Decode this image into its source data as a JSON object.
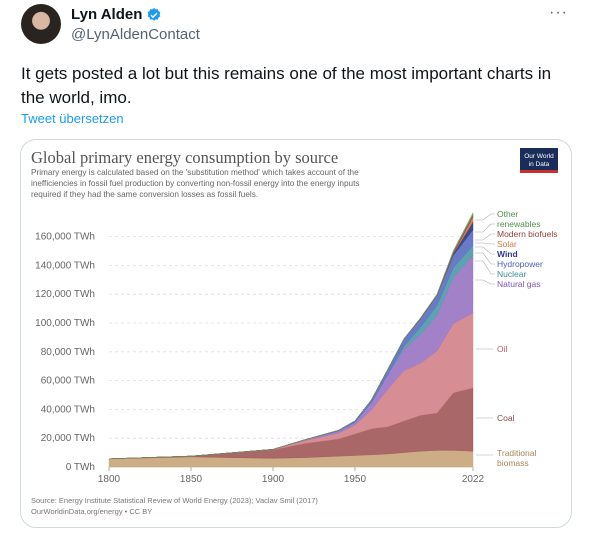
{
  "author": {
    "name": "Lyn Alden",
    "handle": "@LynAldenContact"
  },
  "menu": {
    "more_label": "···"
  },
  "tweet": {
    "text": "It gets posted a lot but this remains one of the most important charts in the world, imo.",
    "translate_label": "Tweet übersetzen"
  },
  "chart_data": {
    "type": "area",
    "title": "Global primary energy consumption by source",
    "subtitle": "Primary energy is calculated based on the 'substitution method' which takes account of the inefficiencies in fossil fuel production by converting non-fossil energy into the energy inputs required if they had the same conversion losses as fossil fuels.",
    "logo_text": "Our World in Data",
    "source": "Source: Energy Institute Statistical Review of World Energy (2023); Vaclav Smil (2017)",
    "source_link": "OurWorldinData.org/energy • CC BY",
    "ylim": [
      0,
      175000
    ],
    "y_ticks": [
      "0 TWh",
      "20,000 TWh",
      "40,000 TWh",
      "60,000 TWh",
      "80,000 TWh",
      "100,000 TWh",
      "120,000 TWh",
      "140,000 TWh",
      "160,000 TWh"
    ],
    "y_tick_values": [
      0,
      20000,
      40000,
      60000,
      80000,
      100000,
      120000,
      140000,
      160000
    ],
    "x_ticks": [
      "1800",
      "1850",
      "1900",
      "1950",
      "2022"
    ],
    "x_tick_values": [
      1800,
      1850,
      1900,
      1950,
      2022
    ],
    "x": [
      1800,
      1850,
      1900,
      1920,
      1940,
      1950,
      1960,
      1970,
      1980,
      1990,
      2000,
      2010,
      2022
    ],
    "series": [
      {
        "name": "Traditional biomass",
        "color": "#c8a67c",
        "values": [
          5600,
          7000,
          6000,
          6500,
          7500,
          8000,
          8500,
          9000,
          10000,
          11000,
          11500,
          11500,
          11000
        ]
      },
      {
        "name": "Coal",
        "color": "#a25a5a",
        "values": [
          100,
          600,
          6000,
          10000,
          12000,
          15000,
          18000,
          19000,
          22000,
          25000,
          26000,
          40000,
          44000
        ]
      },
      {
        "name": "Oil",
        "color": "#d4838b",
        "values": [
          0,
          0,
          200,
          2000,
          4000,
          6000,
          13000,
          26000,
          35000,
          36000,
          43000,
          48000,
          52000
        ]
      },
      {
        "name": "Natural gas",
        "color": "#9b76c4",
        "values": [
          0,
          0,
          100,
          500,
          1500,
          2000,
          5000,
          10000,
          15000,
          20000,
          25000,
          32000,
          40000
        ]
      },
      {
        "name": "Nuclear",
        "color": "#4f9aa8",
        "values": [
          0,
          0,
          0,
          0,
          0,
          0,
          0,
          200,
          2000,
          5000,
          6500,
          7000,
          6800
        ]
      },
      {
        "name": "Hydropower",
        "color": "#5c6fc2",
        "values": [
          0,
          0,
          0,
          200,
          500,
          1000,
          2000,
          3500,
          5000,
          6000,
          7000,
          8500,
          11000
        ]
      },
      {
        "name": "Wind",
        "color": "#2c3a84",
        "values": [
          0,
          0,
          0,
          0,
          0,
          0,
          0,
          0,
          0,
          0,
          100,
          900,
          5500
        ]
      },
      {
        "name": "Solar",
        "color": "#d9763d",
        "values": [
          0,
          0,
          0,
          0,
          0,
          0,
          0,
          0,
          0,
          0,
          0,
          100,
          3500
        ]
      },
      {
        "name": "Modern biofuels",
        "color": "#8f3d3d",
        "values": [
          0,
          0,
          0,
          0,
          0,
          0,
          0,
          0,
          100,
          300,
          300,
          1200,
          1200
        ]
      },
      {
        "name": "Other renewables",
        "color": "#5fa35f",
        "values": [
          0,
          0,
          0,
          0,
          0,
          0,
          0,
          100,
          200,
          400,
          600,
          1000,
          1500
        ]
      }
    ],
    "legend_labels": [
      {
        "text": "Other",
        "color": "#4d8f4d"
      },
      {
        "text": "renewables",
        "color": "#4d8f4d"
      },
      {
        "text": "Modern biofuels",
        "color": "#8f3d3d"
      },
      {
        "text": "Solar",
        "color": "#d9763d"
      },
      {
        "text": "Wind",
        "color": "#2c3a84"
      },
      {
        "text": "Hydropower",
        "color": "#4b5fb8"
      },
      {
        "text": "Nuclear",
        "color": "#3f8a98"
      },
      {
        "text": "Natural gas",
        "color": "#7d56b0"
      },
      {
        "text": "Oil",
        "color": "#c25d68"
      },
      {
        "text": "Coal",
        "color": "#8a4545"
      },
      {
        "text": "Traditional",
        "color": "#a8865c"
      },
      {
        "text": "biomass",
        "color": "#a8865c"
      }
    ]
  }
}
